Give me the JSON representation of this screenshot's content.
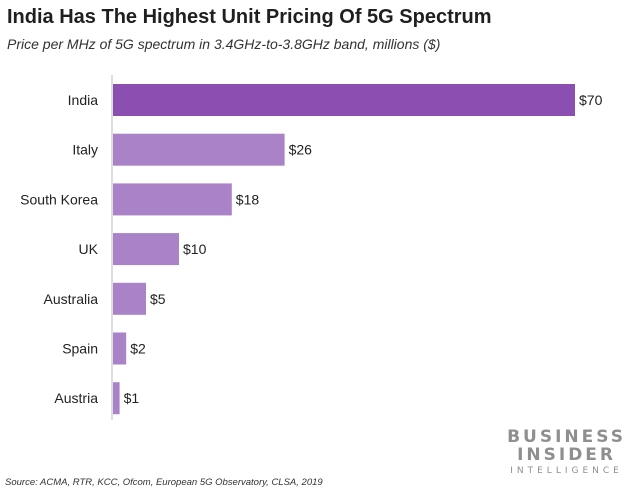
{
  "header": {
    "title": "India Has The Highest Unit Pricing Of 5G Spectrum",
    "subtitle": "Price per MHz of 5G spectrum in 3.4GHz-to-3.8GHz band, millions ($)"
  },
  "chart_data": {
    "type": "bar",
    "orientation": "horizontal",
    "categories": [
      "India",
      "Italy",
      "South Korea",
      "UK",
      "Australia",
      "Spain",
      "Austria"
    ],
    "values": [
      70,
      26,
      18,
      10,
      5,
      2,
      1
    ],
    "value_labels": [
      "$70",
      "$26",
      "$18",
      "$10",
      "$5",
      "$2",
      "$1"
    ],
    "title": "India Has The Highest Unit Pricing Of 5G Spectrum",
    "subtitle": "Price per MHz of 5G spectrum in 3.4GHz-to-3.8GHz band, millions ($)",
    "xlim": [
      0,
      70
    ],
    "grid": false,
    "colors": {
      "highlight": "#8a4fb0",
      "default": "#aa82c8"
    },
    "highlight_index": 0
  },
  "footer": {
    "source": "Source: ACMA, RTR, KCC, Ofcom, European 5G Observatory, CLSA, 2019",
    "brand_line1": "BUSINESS",
    "brand_line2": "INSIDER",
    "brand_line3": "INTELLIGENCE"
  }
}
